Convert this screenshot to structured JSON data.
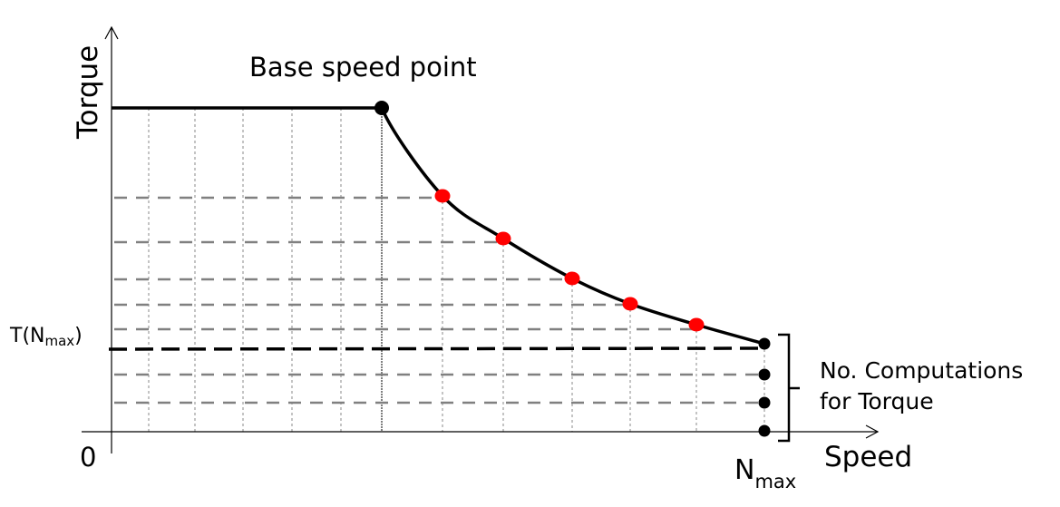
{
  "labels": {
    "y_axis": "Torque",
    "x_axis": "Speed",
    "origin": "0",
    "base_speed": "Base speed point",
    "t_nmax_prefix": "T(N",
    "t_nmax_sub": "max",
    "t_nmax_suffix": ")",
    "nmax_main": "N",
    "nmax_sub": "max",
    "computations_line1": "No. Computations",
    "computations_line2": "for Torque"
  },
  "colors": {
    "curve": "#000000",
    "sample_points": "#ff0000",
    "grid_dashed": "#808080",
    "t_nmax_line": "#000000"
  }
}
